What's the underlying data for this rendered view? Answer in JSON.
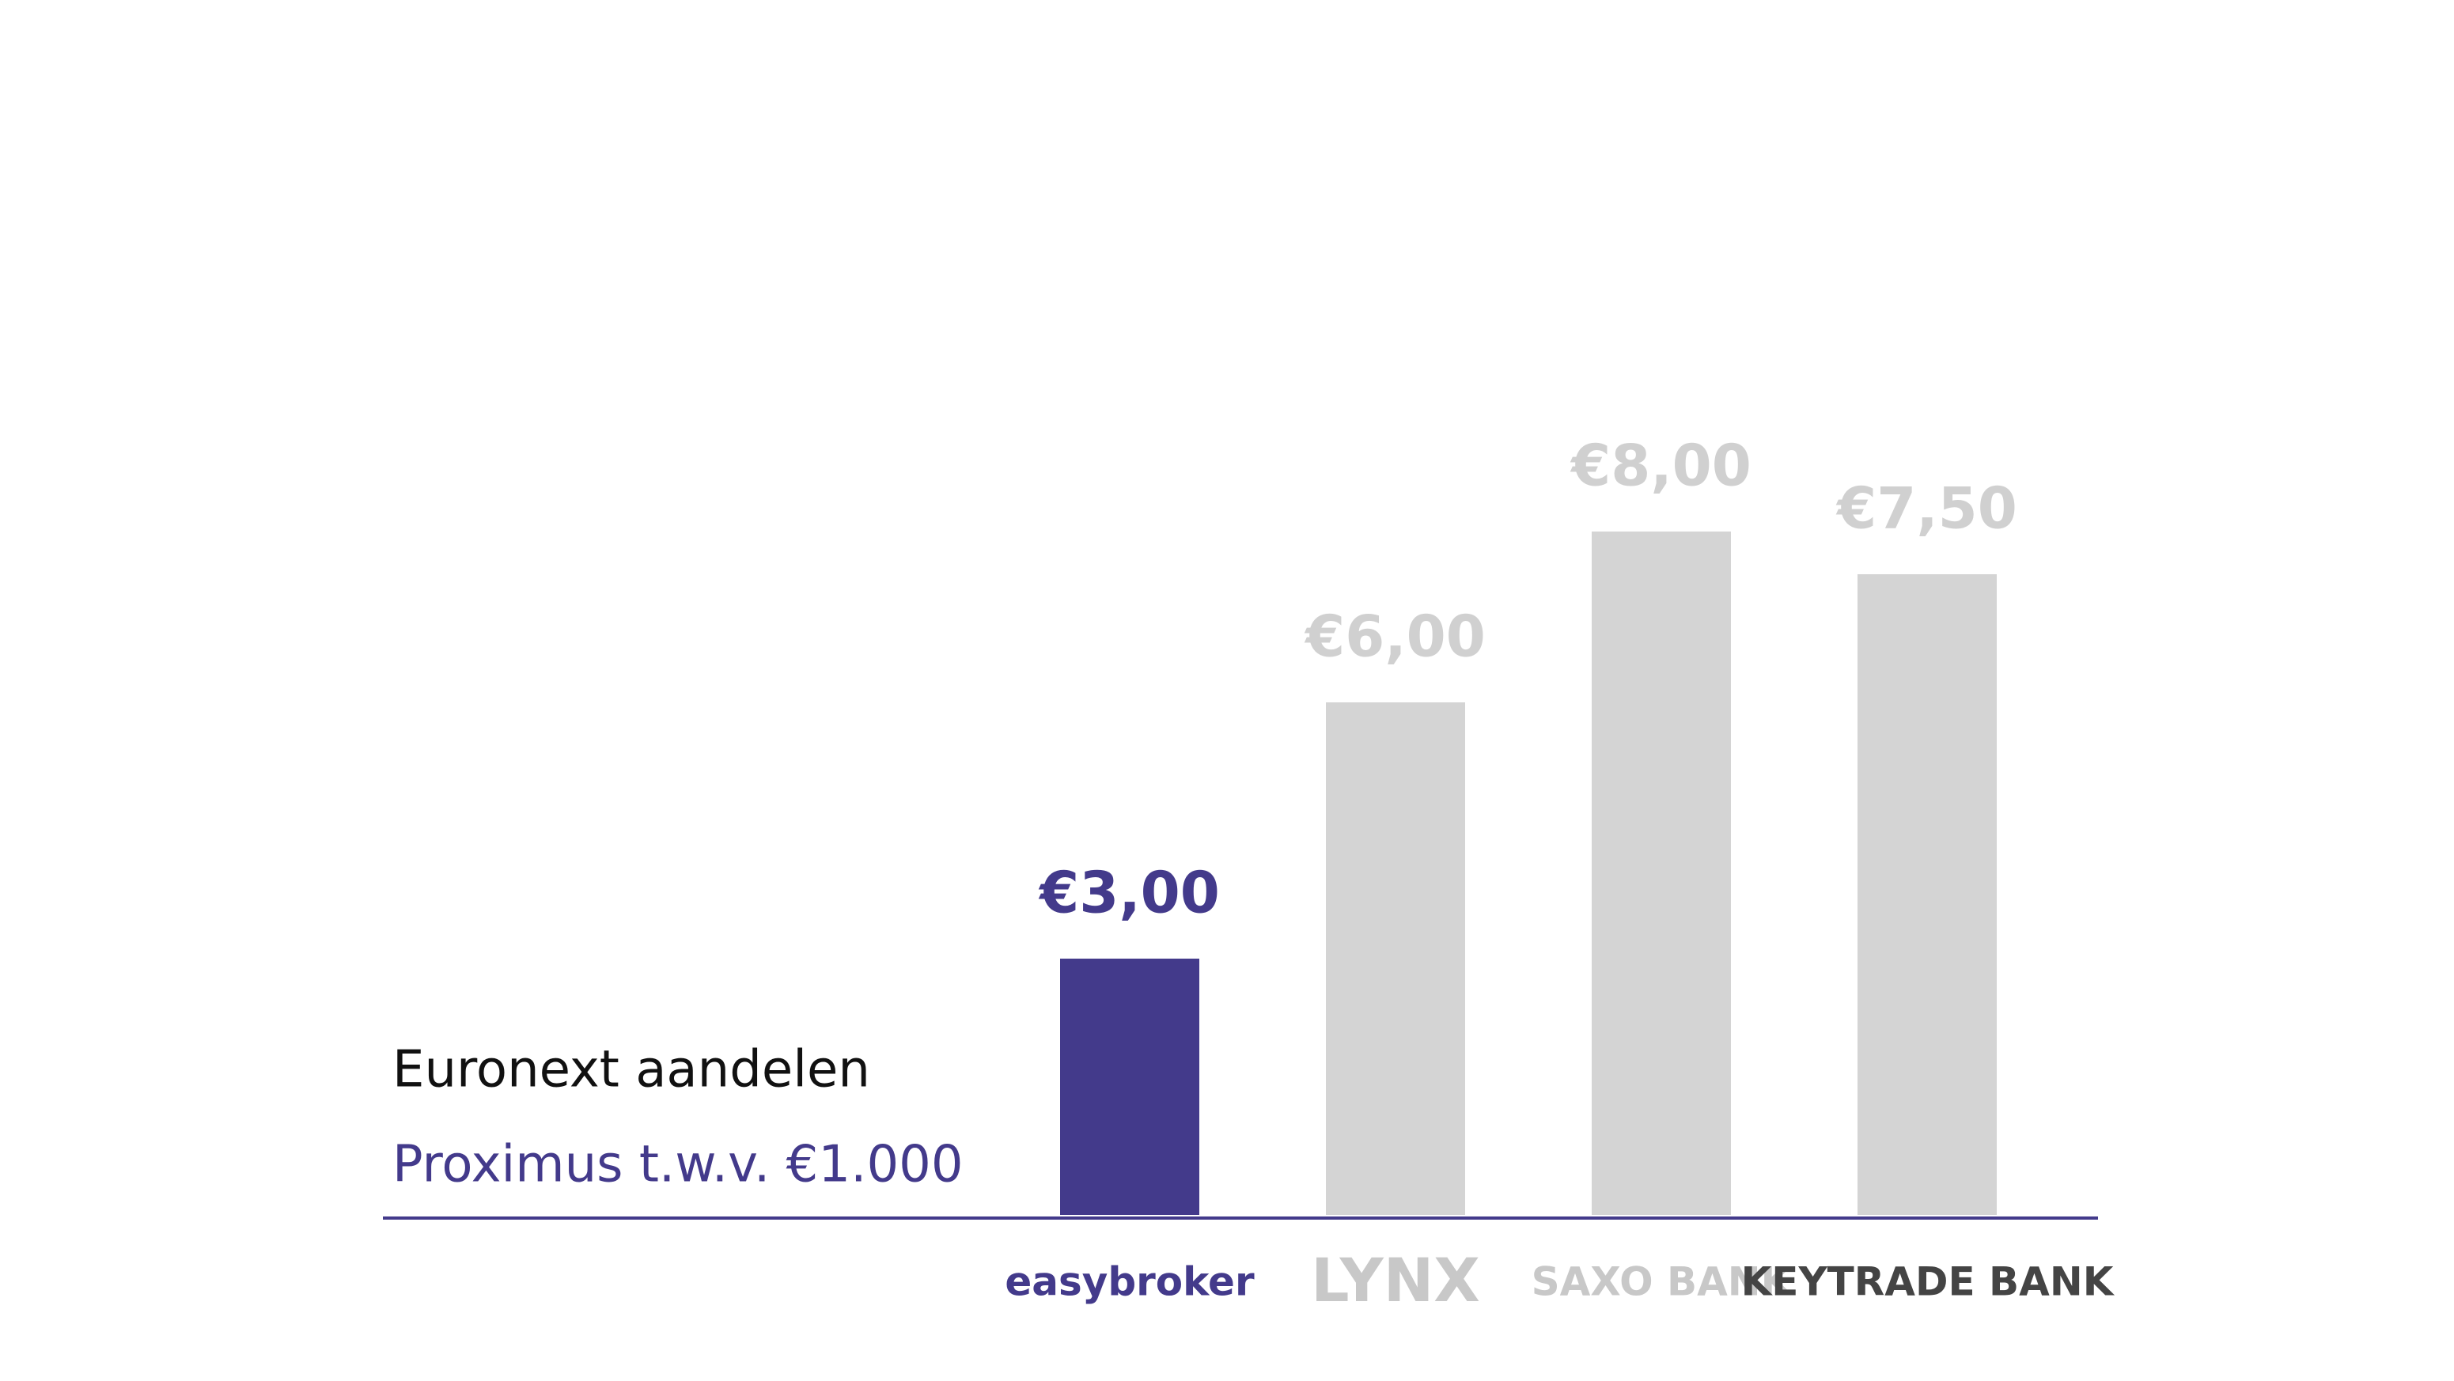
{
  "chart_data": {
    "type": "bar",
    "title": "Euronext aandelen",
    "subtitle": "Proximus t.w.v. €1.000",
    "categories": [
      "easybroker",
      "LYNX",
      "SAXO BANK",
      "KEYTRADE BANK"
    ],
    "values": [
      3,
      6,
      8,
      7.5
    ],
    "value_labels": [
      "€3,00",
      "€6,00",
      "€8,00",
      "€7,50"
    ],
    "colors": [
      "#433a8b",
      "#d4d4d4",
      "#d4d4d4",
      "#d4d4d4"
    ],
    "label_colors": [
      "#433a8b",
      "#d0d0d0",
      "#d0d0d0",
      "#d0d0d0"
    ],
    "grid": false
  }
}
